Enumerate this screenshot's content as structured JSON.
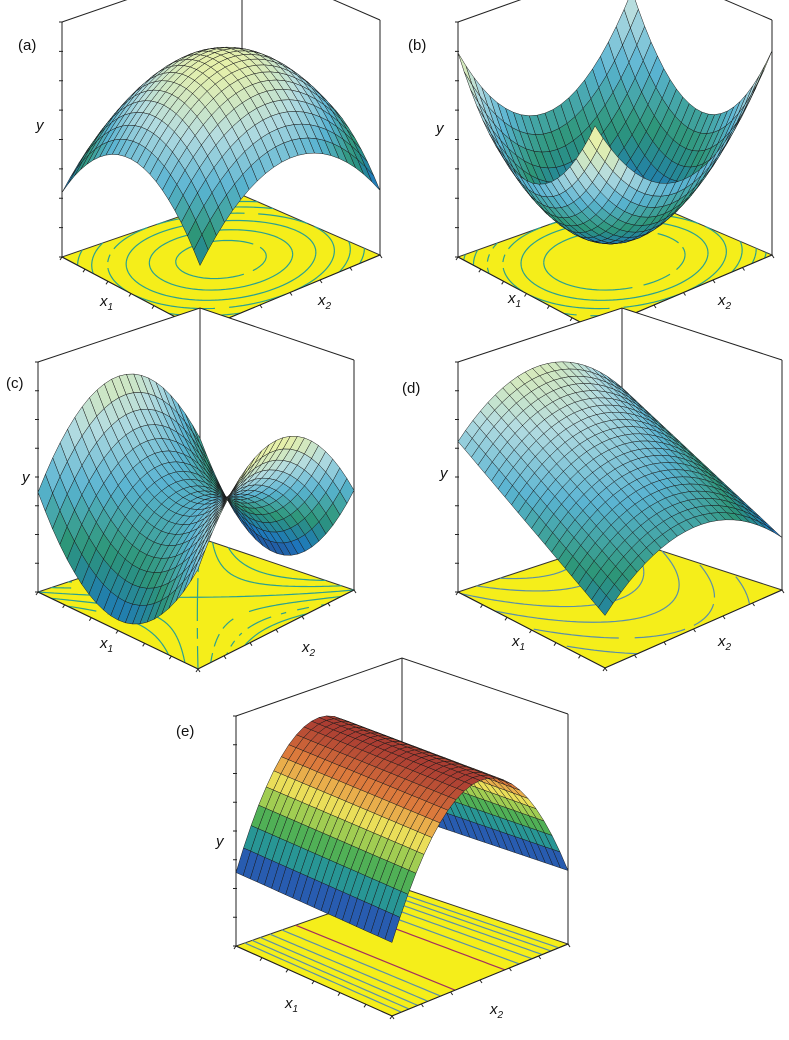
{
  "figure": {
    "panels": [
      {
        "label": "(a)",
        "y_label": "y",
        "x1_label": "x",
        "x1_sub": "1",
        "x2_label": "x",
        "x2_sub": "2"
      },
      {
        "label": "(b)",
        "y_label": "y",
        "x1_label": "x",
        "x1_sub": "1",
        "x2_label": "x",
        "x2_sub": "2"
      },
      {
        "label": "(c)",
        "y_label": "y",
        "x1_label": "x",
        "x1_sub": "1",
        "x2_label": "x",
        "x2_sub": "2"
      },
      {
        "label": "(d)",
        "y_label": "y",
        "x1_label": "x",
        "x1_sub": "1",
        "x2_label": "x",
        "x2_sub": "2"
      },
      {
        "label": "(e)",
        "y_label": "y",
        "x1_label": "x",
        "x1_sub": "1",
        "x2_label": "x",
        "x2_sub": "2"
      }
    ]
  },
  "chart_data": [
    {
      "type": "surface",
      "panel": "(a)",
      "surface": "maximum",
      "function": "y = -x1^2 - x2^2",
      "zlabel": "y",
      "xlabel": "x1",
      "ylabel": "x2",
      "contour_projection": true,
      "contour_shape": "concentric ellipses",
      "colors": {
        "floor": "#f5ee1a",
        "contour": "#2aa090"
      }
    },
    {
      "type": "surface",
      "panel": "(b)",
      "surface": "minimum",
      "function": "y = x1^2 + x2^2",
      "zlabel": "y",
      "xlabel": "x1",
      "ylabel": "x2",
      "contour_projection": true,
      "contour_shape": "concentric ellipses",
      "colors": {
        "floor": "#f5ee1a",
        "contour": "#2aa090"
      }
    },
    {
      "type": "surface",
      "panel": "(c)",
      "surface": "saddle point",
      "function": "y = x1^2 - x2^2",
      "zlabel": "y",
      "xlabel": "x1",
      "ylabel": "x2",
      "contour_projection": true,
      "contour_shape": "hyperbolas",
      "colors": {
        "floor": "#f5ee1a",
        "contour": "#2aa090"
      }
    },
    {
      "type": "surface",
      "panel": "(d)",
      "surface": "rising ridge",
      "function": "y = x1 - x2^2",
      "zlabel": "y",
      "xlabel": "x1",
      "ylabel": "x2",
      "contour_projection": true,
      "contour_shape": "parabolic arcs",
      "colors": {
        "floor": "#f5ee1a",
        "contour": "#5a8fa8"
      }
    },
    {
      "type": "surface",
      "panel": "(e)",
      "surface": "stationary ridge",
      "function": "y = -x2^2",
      "zlabel": "y",
      "xlabel": "x1",
      "ylabel": "x2",
      "contour_projection": true,
      "contour_shape": "parallel lines",
      "colors": {
        "floor": "#f5ee1a",
        "contour": "#5a8fa8",
        "ridge_line": "#a03060"
      }
    }
  ]
}
